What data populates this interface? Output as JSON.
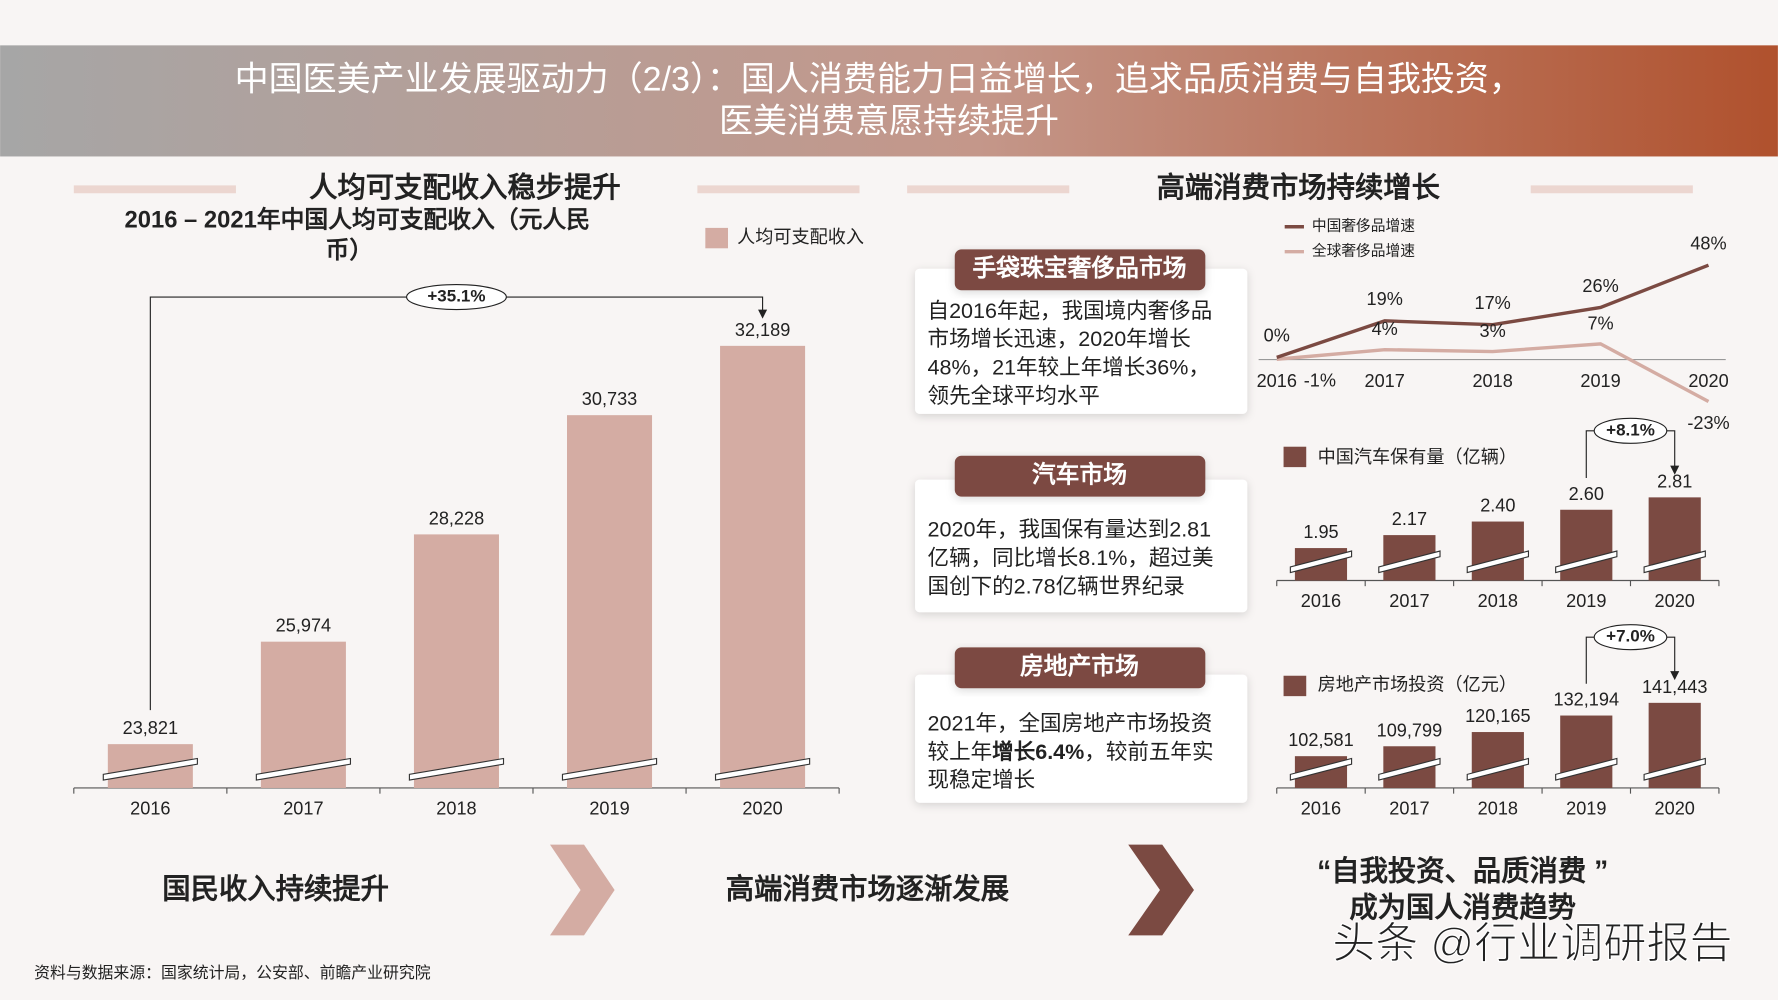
{
  "header": {
    "title_lines": [
      "中国医美产业发展驱动力（2/3）：国人消费能力日益增长，追求品质消费与自我投资，",
      "医美消费意愿持续提升"
    ]
  },
  "right_title": "高端消费市场持续增长",
  "chart_data": [
    {
      "type": "bar",
      "title": "人均可支配收入稳步提升",
      "subtitle_lines": [
        "2016 – 2021年中国人均可支配收入（元人民",
        "币）"
      ],
      "categories": [
        "2016",
        "2017",
        "2018",
        "2019",
        "2020"
      ],
      "series": [
        {
          "name": "人均可支配收入",
          "color": "#d4aca3",
          "values": [
            23821,
            25974,
            28228,
            30733,
            32189
          ],
          "value_labels": [
            "23,821",
            "25,974",
            "28,228",
            "30,733",
            "32,189"
          ]
        }
      ],
      "ylim": [
        22900,
        33000
      ],
      "axis_break": true,
      "annotation": "+35.1%"
    },
    {
      "type": "line",
      "categories": [
        "2016",
        "2017",
        "2018",
        "2019",
        "2020"
      ],
      "series": [
        {
          "name": "中国奢侈品增速",
          "color": "#7b4a42",
          "values": [
            0,
            19,
            17,
            26,
            48
          ],
          "value_labels": [
            "0%",
            "19%",
            "17%",
            "26%",
            "48%"
          ]
        },
        {
          "name": "全球奢侈品增速",
          "color": "#d4aca3",
          "values": [
            -1,
            4,
            3,
            7,
            -23
          ],
          "value_labels": [
            "-1%",
            "4%",
            "3%",
            "7%",
            "-23%"
          ]
        }
      ],
      "ylim": [
        -25,
        50
      ]
    },
    {
      "type": "bar",
      "categories": [
        "2016",
        "2017",
        "2018",
        "2019",
        "2020"
      ],
      "series": [
        {
          "name": "中国汽车保有量（亿辆）",
          "color": "#7b4a42",
          "values": [
            1.95,
            2.17,
            2.4,
            2.6,
            2.81
          ],
          "value_labels": [
            "1.95",
            "2.17",
            "2.40",
            "2.60",
            "2.81"
          ]
        }
      ],
      "ylim": [
        1.4,
        2.9
      ],
      "axis_break": true,
      "annotation": "+8.1%"
    },
    {
      "type": "bar",
      "categories": [
        "2016",
        "2017",
        "2018",
        "2019",
        "2020"
      ],
      "series": [
        {
          "name": "房地产市场投资（亿元）",
          "color": "#7b4a42",
          "values": [
            102581,
            109799,
            120165,
            132194,
            141443
          ],
          "value_labels": [
            "102,581",
            "109,799",
            "120,165",
            "132,194",
            "141,443"
          ]
        }
      ],
      "ylim": [
        79400,
        145000
      ],
      "axis_break": true,
      "annotation": "+7.0%"
    }
  ],
  "boxes": [
    {
      "heading": "手袋珠宝奢侈品市场",
      "lines": [
        [
          {
            "text": "自2016年起，我国境内奢侈品",
            "bold": false
          }
        ],
        [
          {
            "text": "市场增长迅速，2020年增长",
            "bold": false
          }
        ],
        [
          {
            "text": "48%，21年较上年增长36%，",
            "bold": false
          }
        ],
        [
          {
            "text": "领先全球平均水平",
            "bold": false
          }
        ]
      ]
    },
    {
      "heading": "汽车市场",
      "lines": [
        [
          {
            "text": "2020年，我国保有量达到2.81",
            "bold": false
          }
        ],
        [
          {
            "text": "亿辆，同比增长8.1%，超过美",
            "bold": false
          }
        ],
        [
          {
            "text": "国创下的2.78亿辆世界纪录",
            "bold": false
          }
        ]
      ]
    },
    {
      "heading": "房地产市场",
      "lines": [
        [
          {
            "text": "2021年，全国房地产市场投资",
            "bold": false
          }
        ],
        [
          {
            "text": "较上年",
            "bold": false
          },
          {
            "text": "增长6.4%",
            "bold": true
          },
          {
            "text": "，较前五年实",
            "bold": false
          }
        ],
        [
          {
            "text": "现稳定增长",
            "bold": false
          }
        ]
      ]
    }
  ],
  "flow": {
    "steps": [
      "国民收入持续提升",
      "高端消费市场逐渐发展"
    ],
    "conclusion_lines": [
      "“自我投资、品质消费 ”",
      "成为国人消费趋势"
    ]
  },
  "source": "资料与数据来源：国家统计局，公安部、前瞻产业研究院",
  "watermark": "头条 @行业调研报告"
}
